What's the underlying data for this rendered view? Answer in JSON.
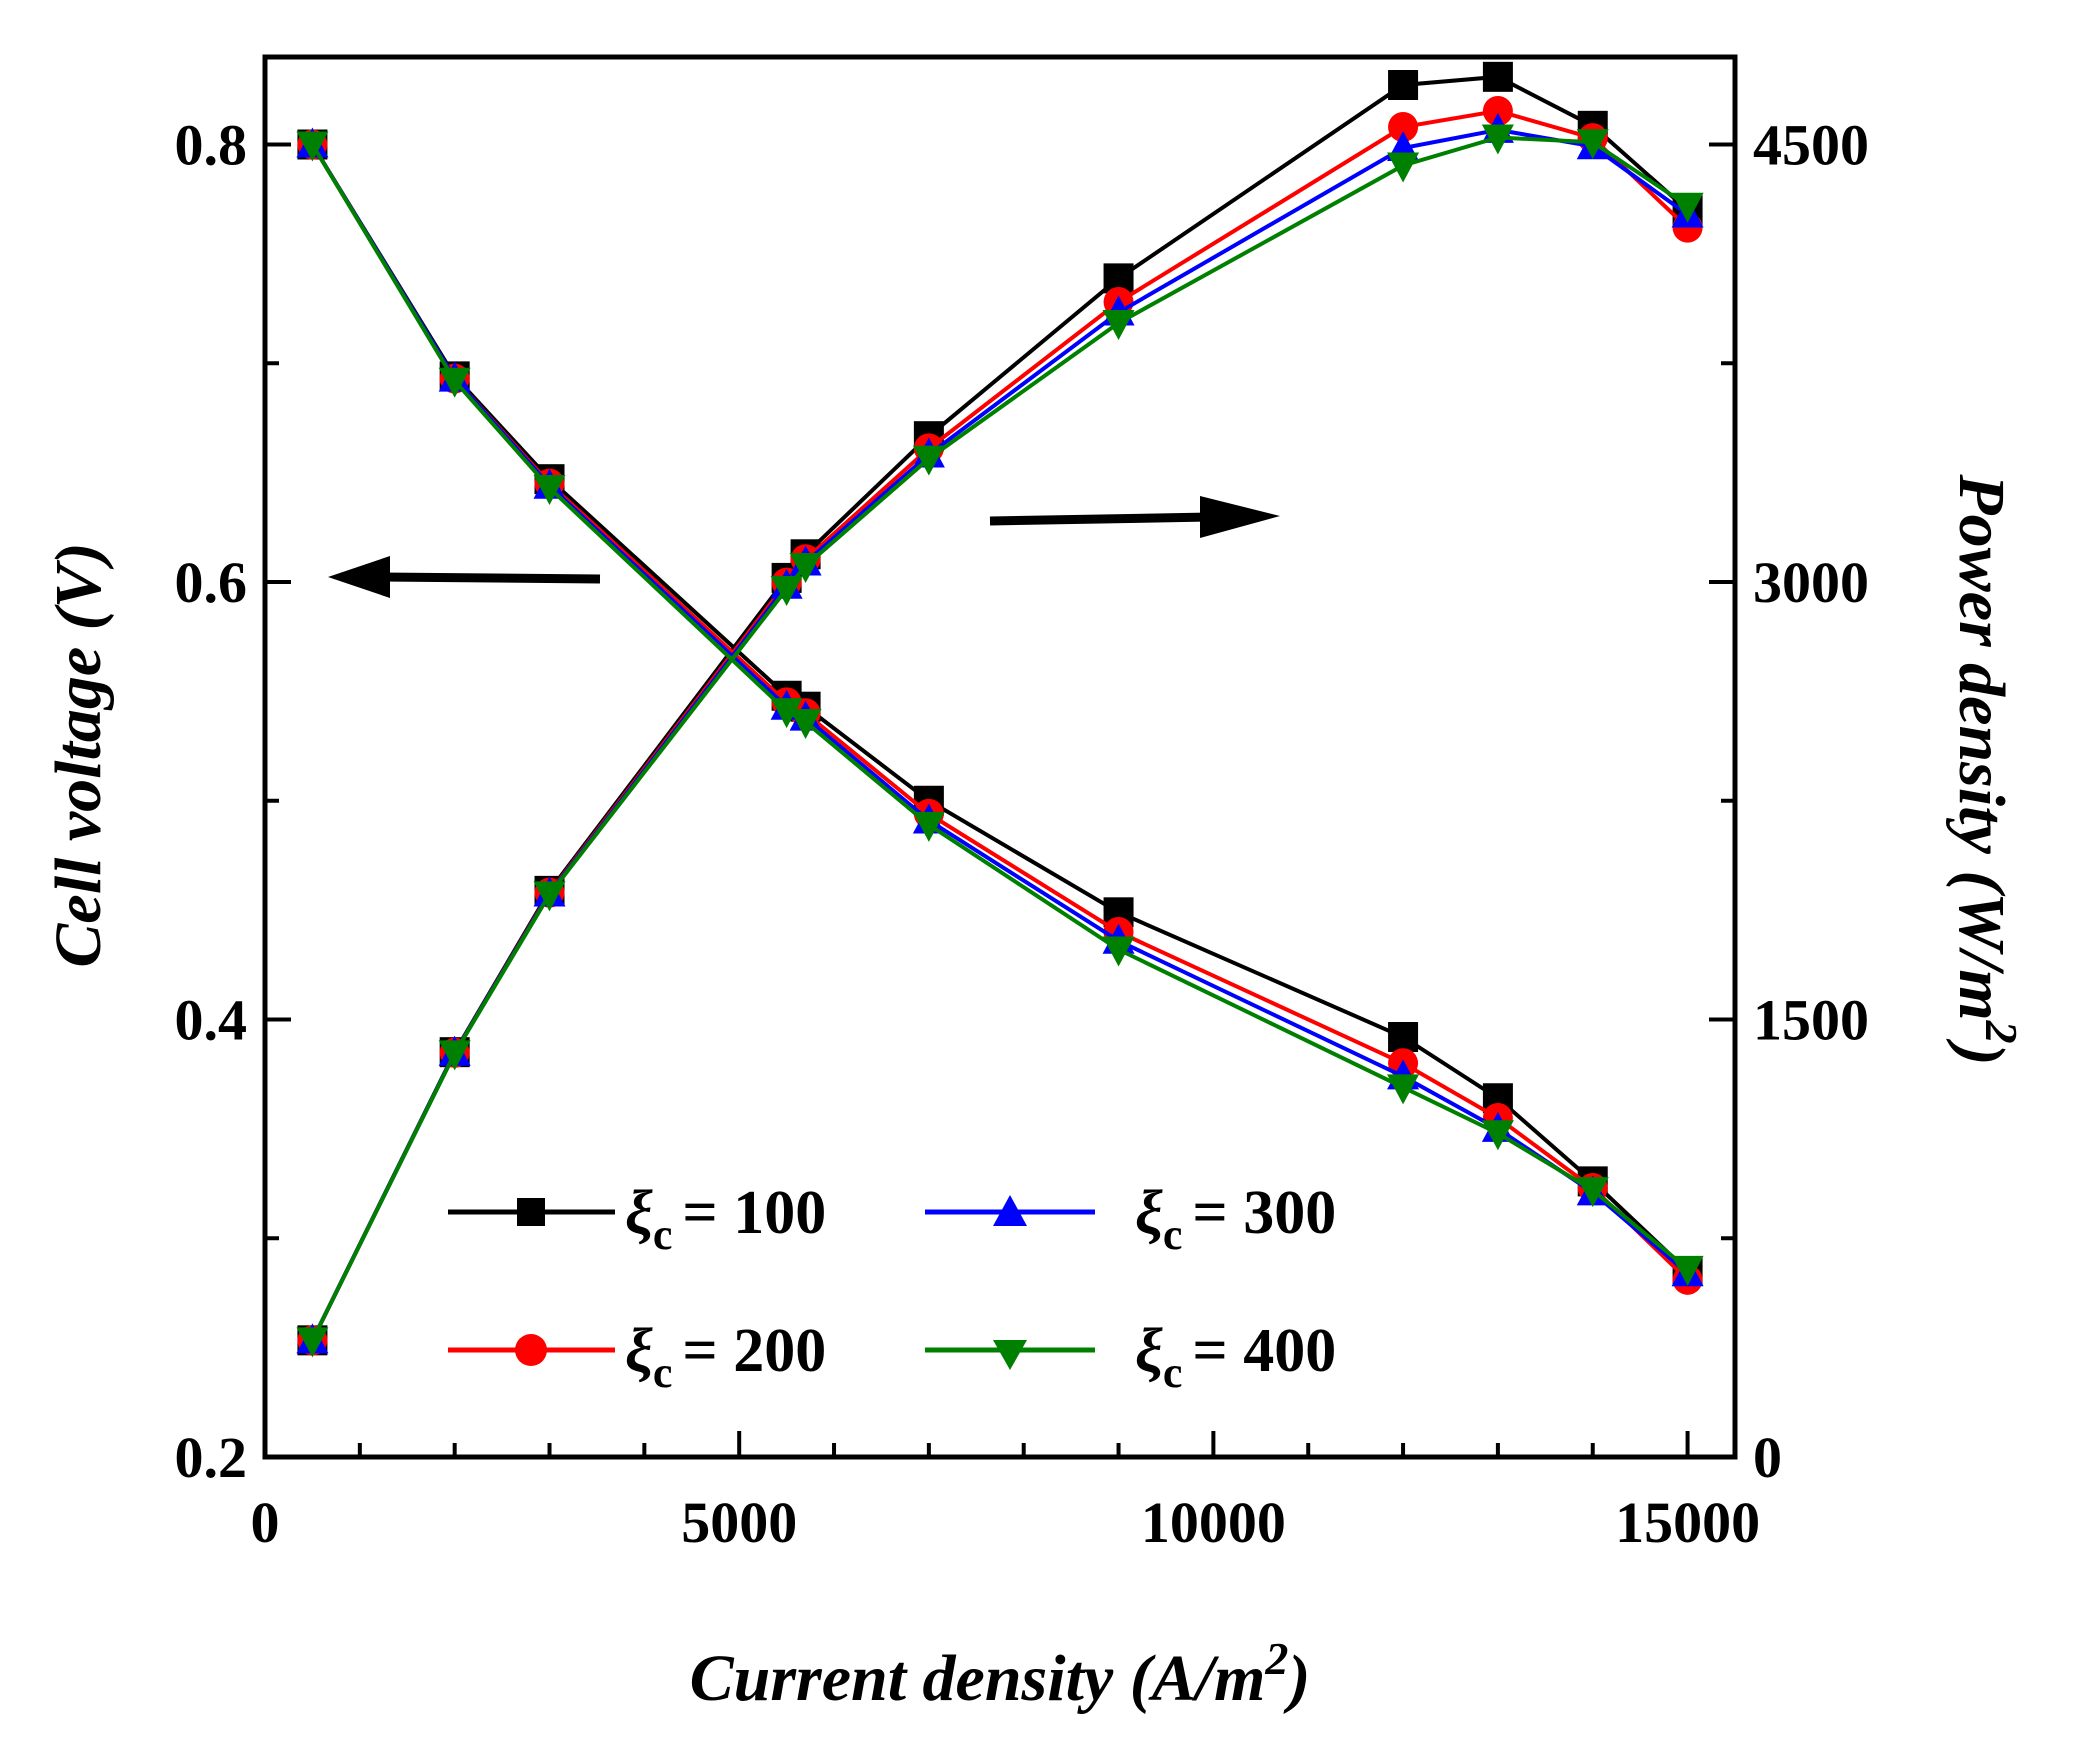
{
  "chart_data": {
    "type": "line",
    "title": "",
    "xlabel": "Current density (A/m",
    "xlabel_sup": "2",
    "xlabel_close": ")",
    "ylabel_left": "Cell voltage (V)",
    "ylabel_right": "Power density (W/m",
    "ylabel_right_sup": "2",
    "ylabel_right_close": ")",
    "xlim": [
      0,
      15500
    ],
    "ylim_left": [
      0.2,
      0.84
    ],
    "ylim_right": [
      0,
      4800
    ],
    "x_ticks": [
      "0",
      "5000",
      "10000",
      "15000"
    ],
    "y_left_ticks": [
      "0.2",
      "0.4",
      "0.6",
      "0.8"
    ],
    "y_right_ticks": [
      "0",
      "1500",
      "3000",
      "4500"
    ],
    "x": [
      500,
      2000,
      3000,
      5500,
      5700,
      7000,
      9000,
      12000,
      13000,
      14000,
      15000
    ],
    "legend_symbol": "ξ",
    "legend_sub": "c",
    "series": [
      {
        "name": "ξc = 100",
        "value_label": "= 100",
        "color": "#000000",
        "marker": "square",
        "voltage": [
          0.8,
          0.694,
          0.647,
          0.548,
          0.543,
          0.5,
          0.449,
          0.392,
          0.364,
          0.326,
          0.285
        ],
        "power": [
          400,
          1388,
          1941,
          3014,
          3095,
          3500,
          4041,
          4704,
          4732,
          4564,
          4275
        ]
      },
      {
        "name": "ξc = 200",
        "value_label": "= 200",
        "color": "#ff0000",
        "marker": "circle",
        "voltage": [
          0.8,
          0.693,
          0.645,
          0.545,
          0.54,
          0.494,
          0.44,
          0.38,
          0.355,
          0.323,
          0.281
        ],
        "power": [
          400,
          1386,
          1935,
          2998,
          3078,
          3458,
          3960,
          4560,
          4615,
          4522,
          4215
        ]
      },
      {
        "name": "ξc = 300",
        "value_label": "= 300",
        "color": "#0000ff",
        "marker": "triangle-up",
        "voltage": [
          0.8,
          0.693,
          0.644,
          0.543,
          0.538,
          0.491,
          0.436,
          0.374,
          0.35,
          0.321,
          0.284
        ],
        "power": [
          400,
          1386,
          1932,
          2987,
          3067,
          3437,
          3924,
          4488,
          4550,
          4494,
          4260
        ]
      },
      {
        "name": "ξc = 400",
        "value_label": "= 400",
        "color": "#008000",
        "marker": "triangle-down",
        "voltage": [
          0.8,
          0.692,
          0.643,
          0.541,
          0.536,
          0.489,
          0.432,
          0.369,
          0.348,
          0.322,
          0.286
        ],
        "power": [
          400,
          1384,
          1929,
          2976,
          3055,
          3423,
          3888,
          4428,
          4524,
          4508,
          4290
        ]
      }
    ]
  }
}
